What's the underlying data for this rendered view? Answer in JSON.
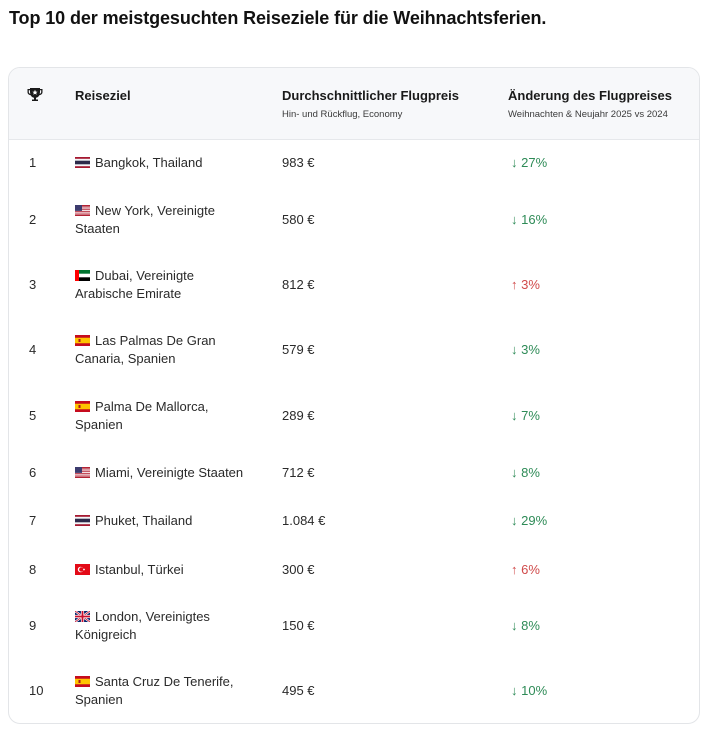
{
  "page": {
    "title": "Top 10 der meistgesuchten Reiseziele für die Weihnachtsferien."
  },
  "table": {
    "headers": {
      "rank_icon": "trophy-icon",
      "destination": "Reiseziel",
      "price": "Durchschnittlicher Flugpreis",
      "price_sub": "Hin- und Rückflug, Economy",
      "change": "Änderung des Flugpreises",
      "change_sub": "Weihnachten & Neujahr 2025 vs 2024"
    },
    "colors": {
      "down": "#2e8b57",
      "up": "#d04a4a",
      "header_bg": "#f7f8fa",
      "border": "#e3e5e8"
    },
    "rows": [
      {
        "rank": "1",
        "flag": "thailand",
        "line1": "Bangkok, Thailand",
        "line2": "",
        "price": "983 €",
        "direction": "down",
        "change": "↓ 27%"
      },
      {
        "rank": "2",
        "flag": "usa",
        "line1": "New York, Vereinigte",
        "line2": "Staaten",
        "price": "580 €",
        "direction": "down",
        "change": "↓ 16%"
      },
      {
        "rank": "3",
        "flag": "uae",
        "line1": "Dubai, Vereinigte",
        "line2": "Arabische Emirate",
        "price": "812 €",
        "direction": "up",
        "change": "↑ 3%"
      },
      {
        "rank": "4",
        "flag": "spain",
        "line1": "Las Palmas De Gran",
        "line2": "Canaria, Spanien",
        "price": "579 €",
        "direction": "down",
        "change": "↓ 3%"
      },
      {
        "rank": "5",
        "flag": "spain",
        "line1": "Palma De Mallorca,",
        "line2": "Spanien",
        "price": "289 €",
        "direction": "down",
        "change": "↓ 7%"
      },
      {
        "rank": "6",
        "flag": "usa",
        "line1": "Miami, Vereinigte Staaten",
        "line2": "",
        "price": "712 €",
        "direction": "down",
        "change": "↓ 8%"
      },
      {
        "rank": "7",
        "flag": "thailand",
        "line1": "Phuket, Thailand",
        "line2": "",
        "price": "1.084 €",
        "direction": "down",
        "change": "↓ 29%"
      },
      {
        "rank": "8",
        "flag": "turkey",
        "line1": "Istanbul, Türkei",
        "line2": "",
        "price": "300 €",
        "direction": "up",
        "change": "↑ 6%"
      },
      {
        "rank": "9",
        "flag": "uk",
        "line1": "London, Vereinigtes",
        "line2": "Königreich",
        "price": "150 €",
        "direction": "down",
        "change": "↓ 8%"
      },
      {
        "rank": "10",
        "flag": "spain",
        "line1": "Santa Cruz De Tenerife,",
        "line2": "Spanien",
        "price": "495 €",
        "direction": "down",
        "change": "↓ 10%"
      }
    ]
  }
}
